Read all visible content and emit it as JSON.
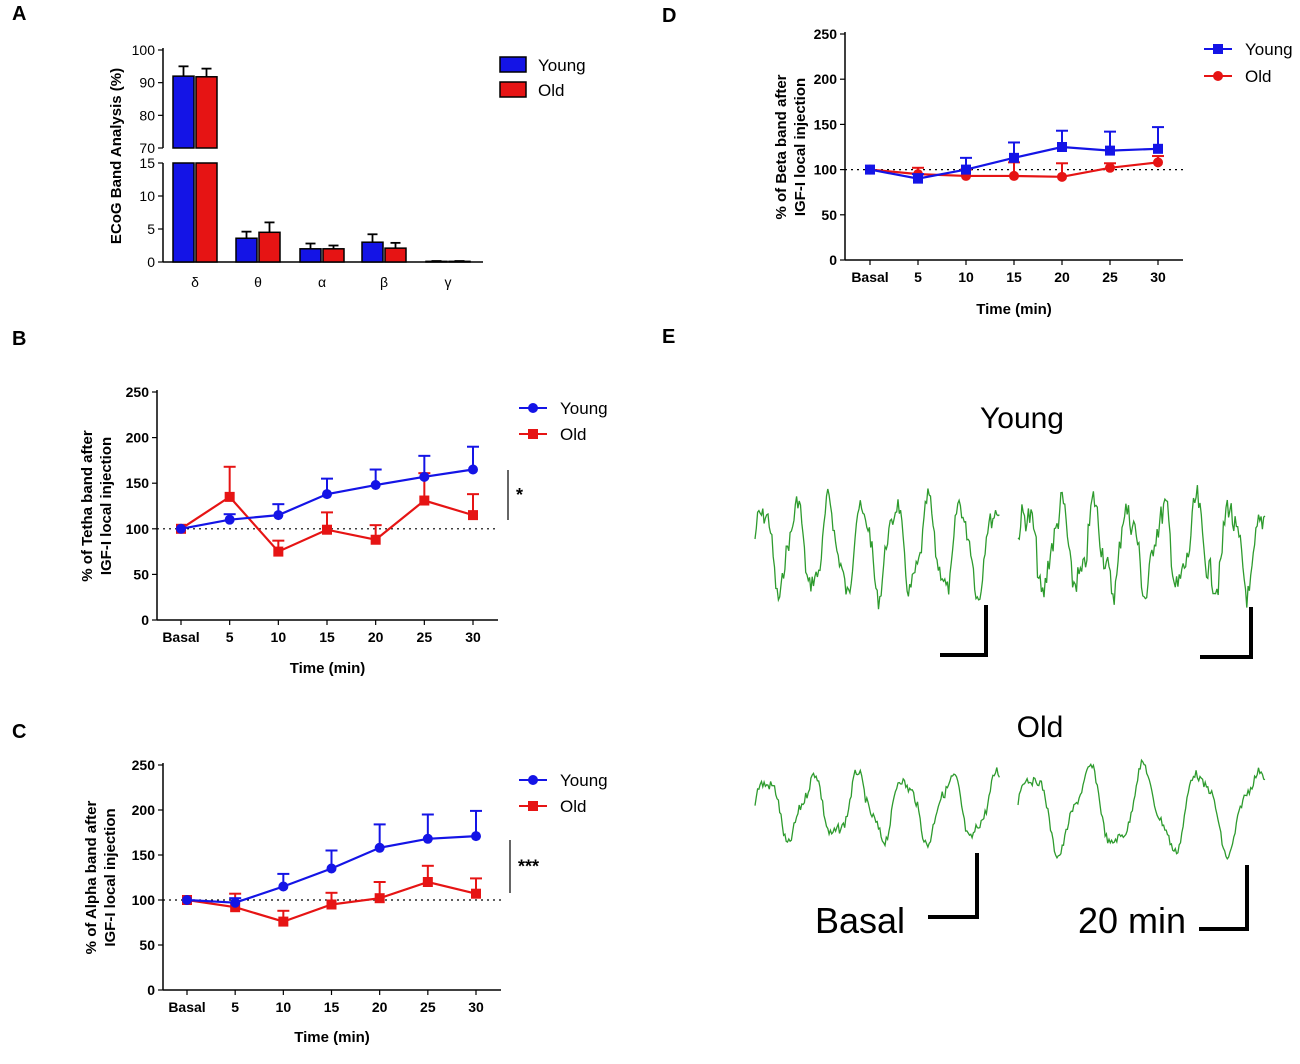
{
  "panels": {
    "A": "A",
    "B": "B",
    "C": "C",
    "D": "D",
    "E": "E"
  },
  "colors": {
    "young": "#1414e6",
    "old": "#e61414",
    "trace": "#2e9b2e",
    "axis": "#000000"
  },
  "chart_data": [
    {
      "id": "A",
      "type": "bar",
      "title": "",
      "ylabel": "ECoG Band Analysis (%)",
      "xlabel": "",
      "categories": [
        "δ",
        "θ",
        "α",
        "β",
        "γ"
      ],
      "broken_axis": true,
      "ylim_lower": [
        0,
        15
      ],
      "ylim_upper": [
        70,
        100
      ],
      "yticks_lower": [
        "0",
        "5",
        "10",
        "15"
      ],
      "yticks_upper": [
        "70",
        "80",
        "90",
        "100"
      ],
      "legend_position": "top-right",
      "series": [
        {
          "name": "Young",
          "color": "#1414e6",
          "values": [
            92,
            3.6,
            2.0,
            3.0,
            0.1
          ],
          "errors": [
            3,
            1.0,
            0.8,
            1.2,
            0.05
          ]
        },
        {
          "name": "Old",
          "color": "#e61414",
          "values": [
            91.8,
            4.5,
            2.0,
            2.1,
            0.1
          ],
          "errors": [
            2.5,
            1.5,
            0.5,
            0.8,
            0.05
          ]
        }
      ]
    },
    {
      "id": "B",
      "type": "line",
      "ylabel": "% of Tetha band after IGF-I local injection",
      "ylabel_lines": [
        "% of Tetha band after",
        "IGF-I local injection"
      ],
      "xlabel": "Time (min)",
      "categories": [
        "Basal",
        "5",
        "10",
        "15",
        "20",
        "25",
        "30"
      ],
      "ylim": [
        0,
        250
      ],
      "yticks": [
        "0",
        "50",
        "100",
        "150",
        "200",
        "250"
      ],
      "baseline": 100,
      "significance": "*",
      "legend_position": "top-right",
      "series": [
        {
          "name": "Young",
          "marker": "circle",
          "color": "#1414e6",
          "values": [
            100,
            110,
            115,
            138,
            148,
            157,
            165
          ],
          "errors": [
            0,
            6,
            12,
            17,
            17,
            23,
            25
          ]
        },
        {
          "name": "Old",
          "marker": "square",
          "color": "#e61414",
          "values": [
            100,
            135,
            75,
            99,
            88,
            131,
            115
          ],
          "errors": [
            0,
            33,
            12,
            19,
            16,
            30,
            23
          ]
        }
      ]
    },
    {
      "id": "C",
      "type": "line",
      "ylabel": "% of Alpha band after IGF-I local injection",
      "ylabel_lines": [
        "% of Alpha band after",
        "IGF-I local injection"
      ],
      "xlabel": "Time (min)",
      "categories": [
        "Basal",
        "5",
        "10",
        "15",
        "20",
        "25",
        "30"
      ],
      "ylim": [
        0,
        250
      ],
      "yticks": [
        "0",
        "50",
        "100",
        "150",
        "200",
        "250"
      ],
      "baseline": 100,
      "significance": "***",
      "legend_position": "top-right",
      "series": [
        {
          "name": "Young",
          "marker": "circle",
          "color": "#1414e6",
          "values": [
            100,
            97,
            115,
            135,
            158,
            168,
            171
          ],
          "errors": [
            0,
            5,
            14,
            20,
            26,
            27,
            28
          ]
        },
        {
          "name": "Old",
          "marker": "square",
          "color": "#e61414",
          "values": [
            100,
            92,
            76,
            95,
            102,
            120,
            107
          ],
          "errors": [
            0,
            15,
            12,
            13,
            18,
            18,
            17
          ]
        }
      ]
    },
    {
      "id": "D",
      "type": "line",
      "ylabel": "% of Beta band after IGF-I local injection",
      "ylabel_lines": [
        "% of Beta band after",
        "IGF-I local injection"
      ],
      "xlabel": "Time (min)",
      "categories": [
        "Basal",
        "5",
        "10",
        "15",
        "20",
        "25",
        "30"
      ],
      "ylim": [
        0,
        250
      ],
      "yticks": [
        "0",
        "50",
        "100",
        "150",
        "200",
        "250"
      ],
      "baseline": 100,
      "legend_position": "top-right",
      "series": [
        {
          "name": "Young",
          "marker": "square",
          "color": "#1414e6",
          "values": [
            100,
            90,
            100,
            113,
            125,
            121,
            123
          ],
          "errors": [
            0,
            5,
            13,
            17,
            18,
            21,
            24
          ]
        },
        {
          "name": "Old",
          "marker": "circle",
          "color": "#e61414",
          "values": [
            100,
            95,
            93,
            93,
            92,
            102,
            108
          ],
          "errors": [
            0,
            7,
            7,
            15,
            15,
            5,
            7
          ]
        }
      ]
    }
  ],
  "traces": {
    "young_title": "Young",
    "old_title": "Old",
    "basal_label": "Basal",
    "post_label": "20 min"
  }
}
